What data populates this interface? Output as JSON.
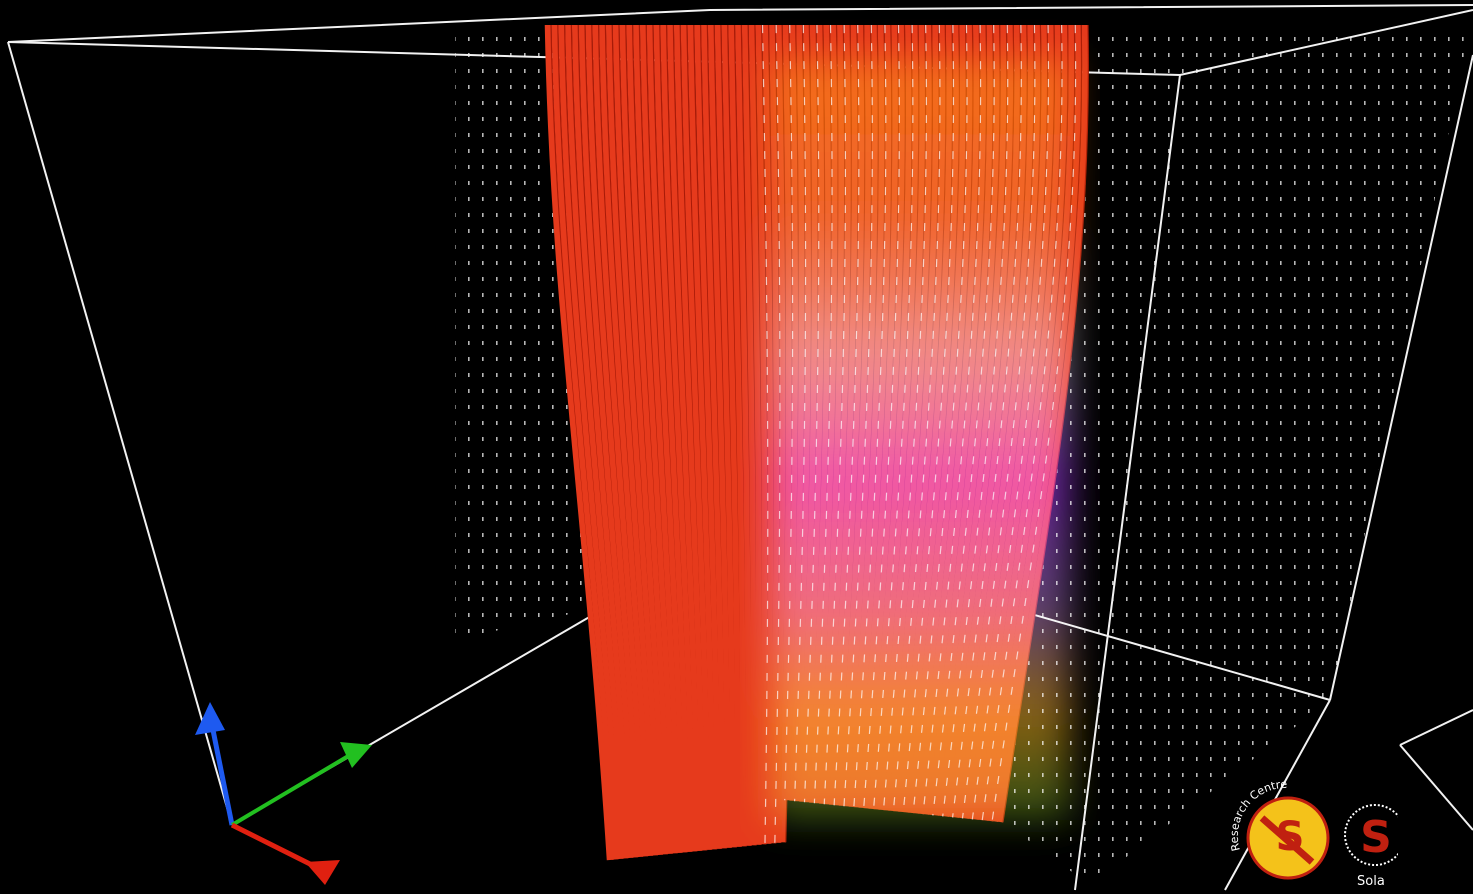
{
  "logo": {
    "text": "Research Centre",
    "partial_text": "Sola"
  }
}
